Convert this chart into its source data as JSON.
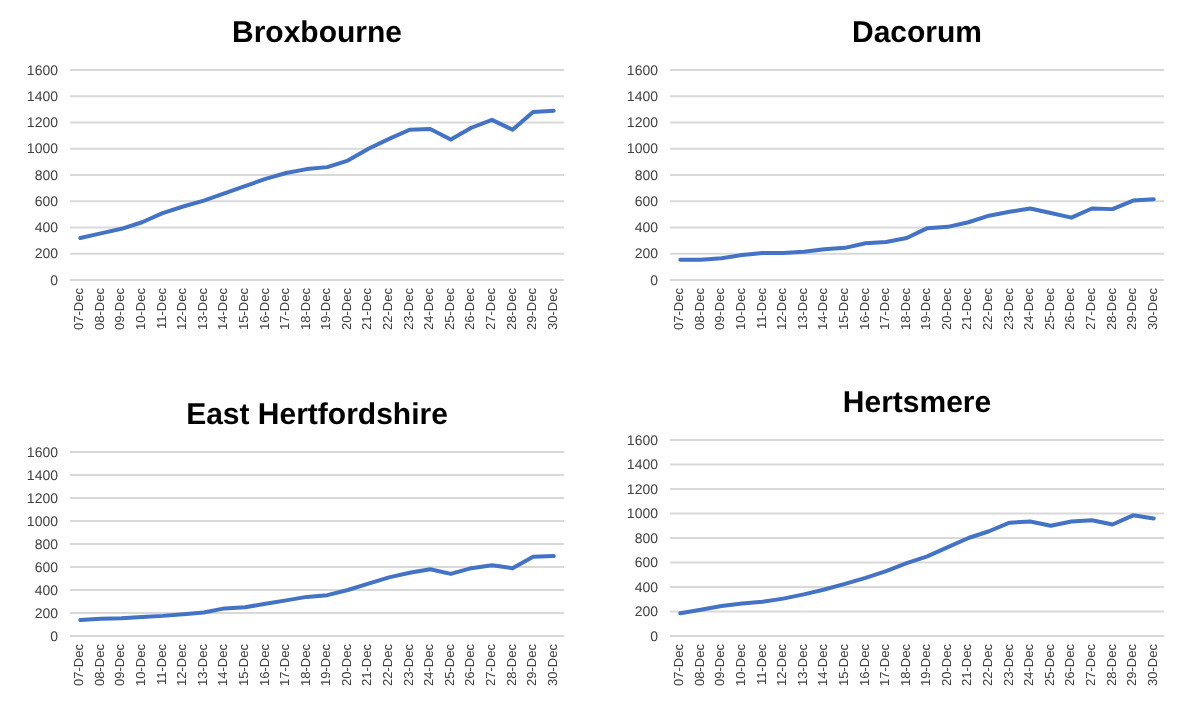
{
  "chart_data": [
    {
      "type": "line",
      "title": "Broxbourne",
      "categories": [
        "07-Dec",
        "08-Dec",
        "09-Dec",
        "10-Dec",
        "11-Dec",
        "12-Dec",
        "13-Dec",
        "14-Dec",
        "15-Dec",
        "16-Dec",
        "17-Dec",
        "18-Dec",
        "19-Dec",
        "20-Dec",
        "21-Dec",
        "22-Dec",
        "23-Dec",
        "24-Dec",
        "25-Dec",
        "26-Dec",
        "27-Dec",
        "28-Dec",
        "29-Dec",
        "30-Dec"
      ],
      "series": [
        {
          "color": "#4472c4",
          "values": [
            320,
            355,
            390,
            440,
            510,
            560,
            605,
            660,
            715,
            770,
            815,
            845,
            860,
            910,
            1000,
            1075,
            1145,
            1150,
            1070,
            1160,
            1220,
            1145,
            1280,
            1290
          ]
        }
      ],
      "ylim": [
        0,
        1600
      ],
      "yticks": [
        0,
        200,
        400,
        600,
        800,
        1000,
        1200,
        1400,
        1600
      ],
      "grid": "y"
    },
    {
      "type": "line",
      "title": "Dacorum",
      "categories": [
        "07-Dec",
        "08-Dec",
        "09-Dec",
        "10-Dec",
        "11-Dec",
        "12-Dec",
        "13-Dec",
        "14-Dec",
        "15-Dec",
        "16-Dec",
        "17-Dec",
        "18-Dec",
        "19-Dec",
        "20-Dec",
        "21-Dec",
        "22-Dec",
        "23-Dec",
        "24-Dec",
        "25-Dec",
        "26-Dec",
        "27-Dec",
        "28-Dec",
        "29-Dec",
        "30-Dec"
      ],
      "series": [
        {
          "color": "#4472c4",
          "values": [
            155,
            155,
            165,
            190,
            205,
            205,
            215,
            235,
            245,
            280,
            290,
            320,
            395,
            405,
            440,
            490,
            520,
            545,
            510,
            475,
            545,
            540,
            605,
            615
          ]
        }
      ],
      "ylim": [
        0,
        1600
      ],
      "yticks": [
        0,
        200,
        400,
        600,
        800,
        1000,
        1200,
        1400,
        1600
      ],
      "grid": "y"
    },
    {
      "type": "line",
      "title": "East Hertfordshire",
      "categories": [
        "07-Dec",
        "08-Dec",
        "09-Dec",
        "10-Dec",
        "11-Dec",
        "12-Dec",
        "13-Dec",
        "14-Dec",
        "15-Dec",
        "16-Dec",
        "17-Dec",
        "18-Dec",
        "19-Dec",
        "20-Dec",
        "21-Dec",
        "22-Dec",
        "23-Dec",
        "24-Dec",
        "25-Dec",
        "26-Dec",
        "27-Dec",
        "28-Dec",
        "29-Dec",
        "30-Dec"
      ],
      "series": [
        {
          "color": "#4472c4",
          "values": [
            140,
            150,
            155,
            165,
            175,
            190,
            205,
            240,
            250,
            280,
            310,
            340,
            355,
            400,
            455,
            510,
            550,
            580,
            540,
            590,
            615,
            590,
            690,
            695
          ]
        }
      ],
      "ylim": [
        0,
        1600
      ],
      "yticks": [
        0,
        200,
        400,
        600,
        800,
        1000,
        1200,
        1400,
        1600
      ],
      "grid": "y"
    },
    {
      "type": "line",
      "title": "Hertsmere",
      "categories": [
        "07-Dec",
        "08-Dec",
        "09-Dec",
        "10-Dec",
        "11-Dec",
        "12-Dec",
        "13-Dec",
        "14-Dec",
        "15-Dec",
        "16-Dec",
        "17-Dec",
        "18-Dec",
        "19-Dec",
        "20-Dec",
        "21-Dec",
        "22-Dec",
        "23-Dec",
        "24-Dec",
        "25-Dec",
        "26-Dec",
        "27-Dec",
        "28-Dec",
        "29-Dec",
        "30-Dec"
      ],
      "series": [
        {
          "color": "#4472c4",
          "values": [
            185,
            215,
            245,
            265,
            280,
            305,
            340,
            380,
            425,
            475,
            530,
            595,
            650,
            725,
            800,
            855,
            925,
            935,
            900,
            935,
            945,
            910,
            985,
            960
          ]
        }
      ],
      "ylim": [
        0,
        1600
      ],
      "yticks": [
        0,
        200,
        400,
        600,
        800,
        1000,
        1200,
        1400,
        1600
      ],
      "grid": "y"
    }
  ]
}
